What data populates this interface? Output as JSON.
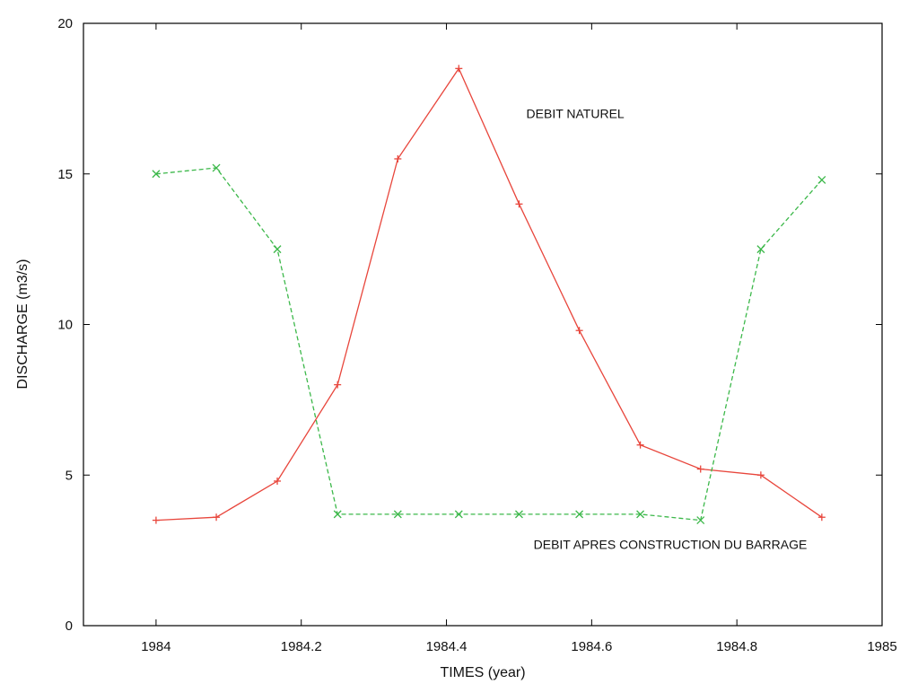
{
  "chart_data": {
    "type": "line",
    "title": "",
    "xlabel": "TIMES (year)",
    "ylabel": "DISCHARGE (m3/s)",
    "xlim": [
      1983.9,
      1985
    ],
    "ylim": [
      0,
      20
    ],
    "xticks": [
      1984,
      1984.2,
      1984.4,
      1984.6,
      1984.8,
      1985
    ],
    "xtick_labels": [
      "1984",
      "1984.2",
      "1984.4",
      "1984.6",
      "1984.8",
      "1985"
    ],
    "yticks": [
      0,
      5,
      10,
      15,
      20
    ],
    "ytick_labels": [
      "0",
      "5",
      "10",
      "15",
      "20"
    ],
    "grid": false,
    "legend": "none",
    "series": [
      {
        "name": "DEBIT NATUREL",
        "color": "#e8463c",
        "line_style": "solid",
        "marker": "plus",
        "x": [
          1984.0,
          1984.083,
          1984.167,
          1984.25,
          1984.333,
          1984.417,
          1984.5,
          1984.583,
          1984.667,
          1984.75,
          1984.833,
          1984.917
        ],
        "y": [
          3.5,
          3.6,
          4.8,
          8.0,
          15.5,
          18.5,
          14.0,
          9.8,
          6.0,
          5.2,
          5.0,
          3.6
        ]
      },
      {
        "name": "DEBIT APRES CONSTRUCTION DU BARRAGE",
        "color": "#3cb84a",
        "line_style": "dashed",
        "marker": "cross",
        "x": [
          1984.0,
          1984.083,
          1984.167,
          1984.25,
          1984.333,
          1984.417,
          1984.5,
          1984.583,
          1984.667,
          1984.75,
          1984.833,
          1984.917
        ],
        "y": [
          15.0,
          15.2,
          12.5,
          3.7,
          3.7,
          3.7,
          3.7,
          3.7,
          3.7,
          3.5,
          12.5,
          14.8
        ]
      }
    ],
    "annotations": [
      {
        "text": "DEBIT NATUREL",
        "x": 1984.51,
        "y": 16.85
      },
      {
        "text": "DEBIT APRES CONSTRUCTION DU BARRAGE",
        "x": 1984.52,
        "y": 2.55
      }
    ]
  }
}
